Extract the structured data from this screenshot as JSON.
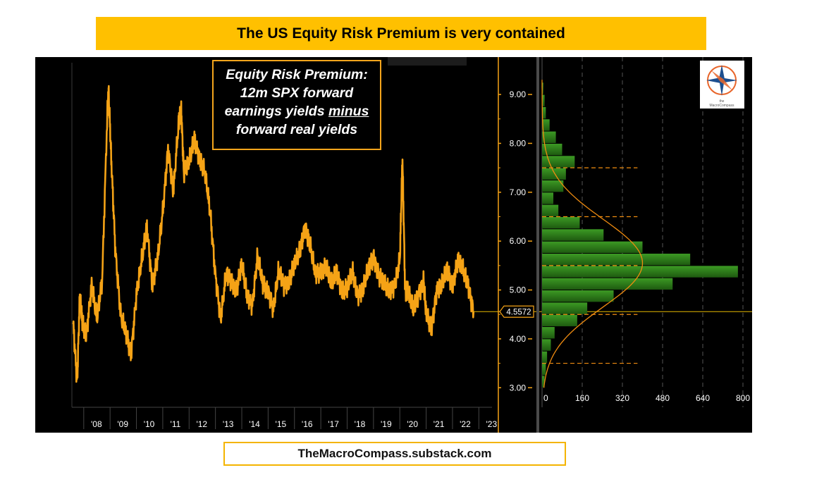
{
  "title": "The US Equity Risk Premium is very contained",
  "footer": "TheMacroCompass.substack.com",
  "annotation": {
    "line1": "Equity Risk Premium:",
    "line2": "12m SPX forward",
    "line3a": "earnings yields ",
    "line3b": "minus",
    "line4": "forward real yields"
  },
  "logo": {
    "icon": "compass-logo-icon",
    "text": "The MacroCompass"
  },
  "colors": {
    "series": "#f5a316",
    "histogram": "#2e7d1a",
    "axis": "#f5a316",
    "panel": "#000000",
    "banner": "#ffc000",
    "curve": "#f08c10"
  },
  "chart_data": [
    {
      "type": "line",
      "series": [
        {
          "x": [
            2007.6,
            2007.75,
            2007.85,
            2007.95,
            2008.1,
            2008.3,
            2008.5,
            2008.7,
            2008.9,
            2008.95,
            2009.05,
            2009.2,
            2009.4,
            2009.6,
            2009.8,
            2010.0,
            2010.2,
            2010.4,
            2010.6,
            2010.8,
            2011.0,
            2011.2,
            2011.4,
            2011.6,
            2011.7,
            2011.8,
            2012.0,
            2012.2,
            2012.4,
            2012.6,
            2012.8,
            2013.0,
            2013.2,
            2013.4,
            2013.6,
            2013.8,
            2014.0,
            2014.2,
            2014.4,
            2014.6,
            2014.8,
            2015.0,
            2015.2,
            2015.4,
            2015.6,
            2015.8,
            2016.0,
            2016.2,
            2016.4,
            2016.6,
            2016.8,
            2017.0,
            2017.2,
            2017.4,
            2017.6,
            2017.8,
            2018.0,
            2018.2,
            2018.4,
            2018.6,
            2018.8,
            2019.0,
            2019.2,
            2019.4,
            2019.6,
            2019.8,
            2020.0,
            2020.1,
            2020.2,
            2020.3,
            2020.5,
            2020.7,
            2020.9,
            2021.0,
            2021.2,
            2021.4,
            2021.6,
            2021.8,
            2022.0,
            2022.2,
            2022.4,
            2022.6,
            2022.8
          ],
          "values": [
            4.3,
            3.1,
            4.9,
            4.3,
            4.1,
            5.1,
            4.4,
            5.2,
            8.7,
            9.0,
            7.6,
            5.8,
            4.5,
            4.1,
            3.7,
            4.9,
            5.6,
            6.3,
            5.1,
            5.6,
            6.6,
            7.9,
            7.0,
            8.4,
            8.7,
            7.4,
            7.6,
            8.1,
            7.7,
            7.4,
            6.6,
            5.3,
            4.4,
            5.3,
            5.2,
            5.0,
            5.5,
            4.9,
            4.7,
            5.7,
            5.1,
            5.0,
            4.6,
            5.4,
            5.1,
            5.2,
            5.5,
            5.8,
            6.3,
            5.9,
            5.3,
            5.4,
            5.5,
            5.1,
            5.4,
            5.0,
            5.0,
            5.4,
            4.9,
            5.0,
            5.4,
            5.7,
            5.3,
            5.1,
            5.0,
            5.1,
            5.6,
            7.7,
            5.0,
            5.0,
            4.6,
            4.9,
            5.2,
            4.5,
            4.2,
            5.0,
            5.1,
            5.4,
            5.1,
            5.6,
            5.4,
            5.1,
            4.56
          ]
        }
      ],
      "xticks": [
        "'08",
        "'09",
        "'10",
        "'11",
        "'12",
        "'13",
        "'14",
        "'15",
        "'16",
        "'17",
        "'18",
        "'19",
        "'20",
        "'21",
        "'22",
        "'23"
      ],
      "xtick_years": [
        2008,
        2009,
        2010,
        2011,
        2012,
        2013,
        2014,
        2015,
        2016,
        2017,
        2018,
        2019,
        2020,
        2021,
        2022,
        2023
      ],
      "xlim": [
        2007.55,
        2023.5
      ],
      "yticks": [
        "9.00",
        "8.00",
        "7.00",
        "6.00",
        "5.00",
        "4.00",
        "3.00"
      ],
      "ytick_values": [
        9,
        8,
        7,
        6,
        5,
        4,
        3
      ],
      "ylim": [
        2.6,
        9.65
      ],
      "last_value_label": "4.5572",
      "last_value": 4.5572,
      "grid": false
    },
    {
      "type": "bar",
      "orientation": "horizontal",
      "bins": [
        3.0,
        3.25,
        3.5,
        3.75,
        4.0,
        4.25,
        4.5,
        4.75,
        5.0,
        5.25,
        5.5,
        5.75,
        6.0,
        6.25,
        6.5,
        6.75,
        7.0,
        7.25,
        7.5,
        7.75,
        8.0,
        8.25,
        8.5,
        8.75,
        9.0
      ],
      "counts": [
        10,
        15,
        20,
        35,
        50,
        140,
        180,
        285,
        520,
        780,
        590,
        400,
        245,
        150,
        65,
        45,
        85,
        95,
        130,
        80,
        55,
        30,
        15,
        10,
        5
      ],
      "normal_curve": {
        "mean": 5.55,
        "sd": 0.9,
        "peak": 400
      },
      "xticks": [
        "0",
        "160",
        "320",
        "480",
        "640",
        "800"
      ],
      "xtick_values": [
        0,
        160,
        320,
        480,
        640,
        800
      ],
      "xlim": [
        0,
        800
      ],
      "dashed_levels": [
        7.5,
        6.5,
        5.5,
        4.5,
        3.5
      ],
      "grid": "vertical dashed"
    }
  ]
}
